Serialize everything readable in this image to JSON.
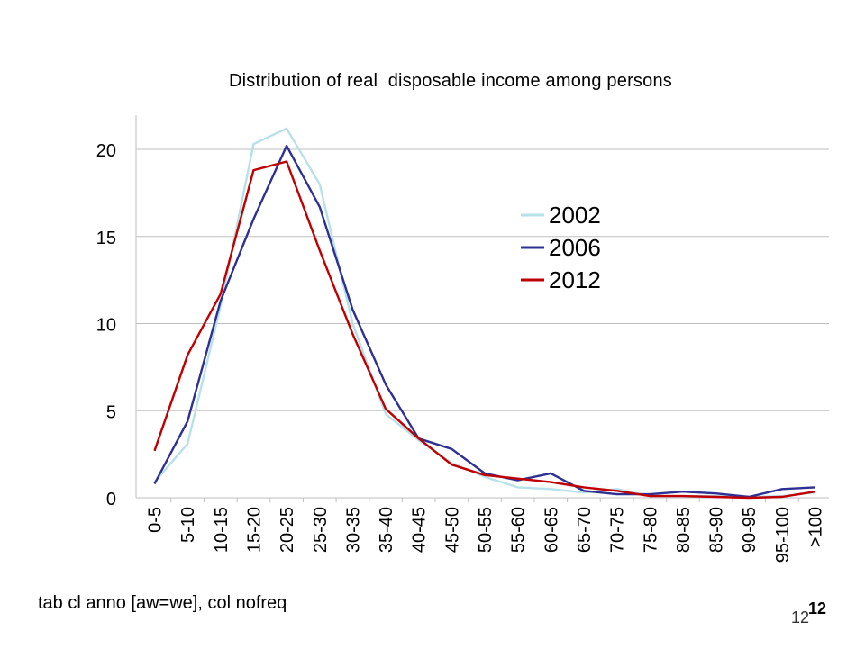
{
  "slide": {
    "footnote": "tab cl anno [aw=we], col nofreq",
    "page_number_bold": "12",
    "page_number": "12"
  },
  "chart_data": {
    "type": "line",
    "title": "Distribution of real  disposable income among persons",
    "xlabel": "",
    "ylabel": "",
    "ylim": [
      0,
      22
    ],
    "yticks": [
      0,
      5,
      10,
      15,
      20
    ],
    "grid": true,
    "legend_position": "upper-right inside",
    "categories": [
      "0-5",
      "5-10",
      "10-15",
      "15-20",
      "20-25",
      "25-30",
      "30-35",
      "35-40",
      "40-45",
      "45-50",
      "50-55",
      "55-60",
      "60-65",
      "65-70",
      "70-75",
      "75-80",
      "80-85",
      "85-90",
      "90-95",
      "95-100",
      ">100"
    ],
    "series": [
      {
        "name": "2002",
        "color": "#b7e1e8",
        "values": [
          0.9,
          3.1,
          11.0,
          20.3,
          21.2,
          18.0,
          10.0,
          4.8,
          3.3,
          2.0,
          1.2,
          0.6,
          0.5,
          0.3,
          0.5,
          0.1,
          0.1,
          0.1,
          0.05,
          0.1,
          0.3
        ]
      },
      {
        "name": "2006",
        "color": "#2e3192",
        "values": [
          0.8,
          4.4,
          11.3,
          16.0,
          20.2,
          16.7,
          10.8,
          6.5,
          3.4,
          2.8,
          1.4,
          1.0,
          1.4,
          0.4,
          0.2,
          0.2,
          0.35,
          0.25,
          0.05,
          0.5,
          0.6
        ]
      },
      {
        "name": "2012",
        "color": "#c00000",
        "values": [
          2.7,
          8.2,
          11.7,
          18.8,
          19.3,
          14.2,
          9.4,
          5.1,
          3.4,
          1.9,
          1.3,
          1.1,
          0.9,
          0.6,
          0.4,
          0.1,
          0.1,
          0.05,
          0.0,
          0.05,
          0.35
        ]
      }
    ]
  }
}
